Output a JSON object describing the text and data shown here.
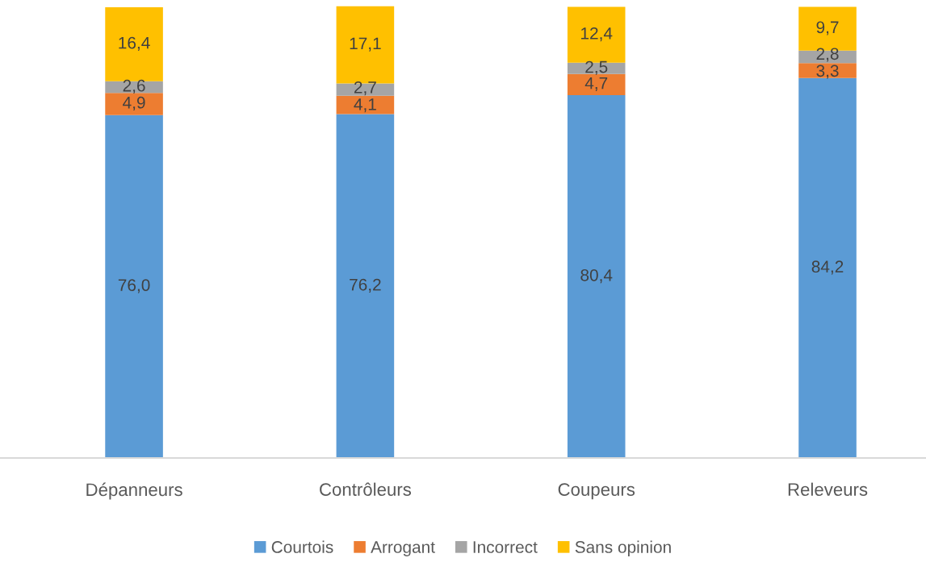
{
  "chart_data": {
    "type": "bar",
    "stacked": true,
    "categories": [
      "Dépanneurs",
      "Contrôleurs",
      "Coupeurs",
      "Releveurs"
    ],
    "series": [
      {
        "name": "Courtois",
        "color": "#5b9bd5",
        "values": [
          76.0,
          76.2,
          80.4,
          84.2
        ],
        "value_labels": [
          "76,0",
          "76,2",
          "80,4",
          "84,2"
        ]
      },
      {
        "name": "Arrogant",
        "color": "#ed7d31",
        "values": [
          4.9,
          4.1,
          4.7,
          3.3
        ],
        "value_labels": [
          "4,9",
          "4,1",
          "4,7",
          "3,3"
        ]
      },
      {
        "name": "Incorrect",
        "color": "#a5a5a5",
        "values": [
          2.6,
          2.7,
          2.5,
          2.8
        ],
        "value_labels": [
          "2,6",
          "2,7",
          "2,5",
          "2,8"
        ]
      },
      {
        "name": "Sans opinion",
        "color": "#ffc000",
        "values": [
          16.4,
          17.1,
          12.4,
          9.7
        ],
        "value_labels": [
          "16,4",
          "17,1",
          "12,4",
          "9,7"
        ]
      }
    ],
    "legend": "bottom",
    "grid": false,
    "tick_labels": "x"
  }
}
